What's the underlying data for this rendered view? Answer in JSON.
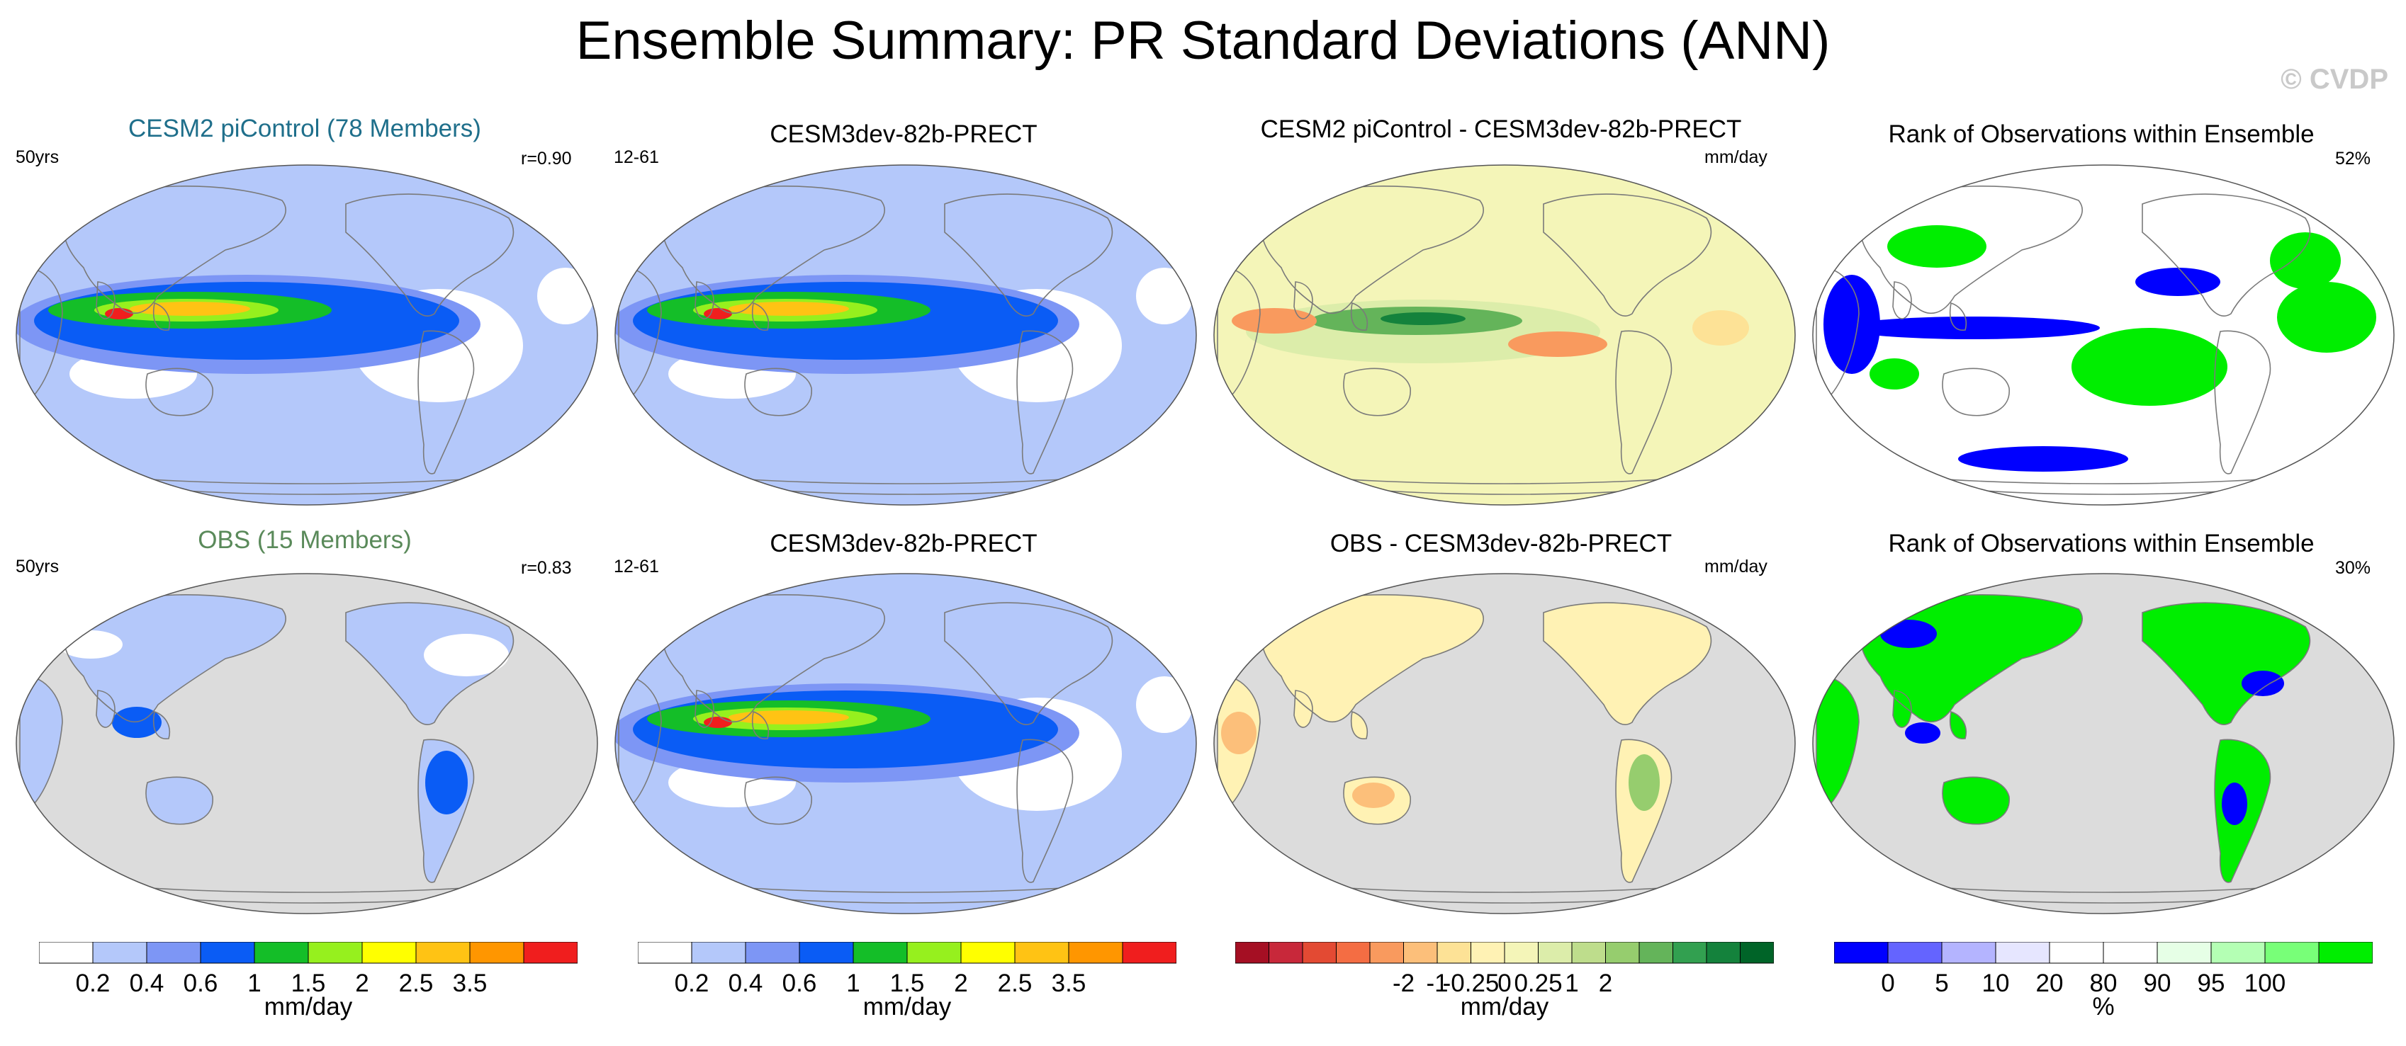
{
  "figure": {
    "title": "Ensemble Summary: PR Standard Deviations (ANN)",
    "watermark": "© CVDP"
  },
  "colors": {
    "land_gray": "#dcdcdc",
    "ocean_white": "#ffffff",
    "coast": "#7a7a7a",
    "model_title": "#1f6f8b",
    "obs_title": "#5a8a5a"
  },
  "panels": [
    {
      "id": "p1",
      "title": "CESM2 piControl (78 Members)",
      "title_color": "#1f6f8b",
      "left_label": "50yrs",
      "right_label": "r=0.90",
      "field": "std"
    },
    {
      "id": "p2",
      "title": "CESM3dev-82b-PRECT",
      "title_color": "#000000",
      "left_label": "12-61",
      "right_label": "",
      "field": "std"
    },
    {
      "id": "p3",
      "title": "CESM2 piControl - CESM3dev-82b-PRECT",
      "title_color": "#000000",
      "left_label": "",
      "right_label": "mm/day",
      "field": "diff"
    },
    {
      "id": "p4",
      "title": "Rank of Observations within Ensemble",
      "title_color": "#000000",
      "left_label": "",
      "right_label": "52%",
      "field": "rank"
    },
    {
      "id": "p5",
      "title": "OBS (15 Members)",
      "title_color": "#5a8a5a",
      "left_label": "50yrs",
      "right_label": "r=0.83",
      "field": "std-land"
    },
    {
      "id": "p6",
      "title": "CESM3dev-82b-PRECT",
      "title_color": "#000000",
      "left_label": "12-61",
      "right_label": "",
      "field": "std"
    },
    {
      "id": "p7",
      "title": "OBS - CESM3dev-82b-PRECT",
      "title_color": "#000000",
      "left_label": "",
      "right_label": "mm/day",
      "field": "diff-land"
    },
    {
      "id": "p8",
      "title": "Rank of Observations within Ensemble",
      "title_color": "#000000",
      "left_label": "",
      "right_label": "30%",
      "field": "rank-land"
    }
  ],
  "colorbars": [
    {
      "id": "cb1",
      "unit": "mm/day",
      "colors": [
        "#ffffff",
        "#b4c8fa",
        "#7d96f5",
        "#0a5cf5",
        "#14be28",
        "#96f01e",
        "#ffff00",
        "#ffc314",
        "#ff9600",
        "#f01e1e"
      ],
      "ticks": [
        "0.2",
        "0.4",
        "0.6",
        "1",
        "1.5",
        "2",
        "2.5",
        "3.5"
      ]
    },
    {
      "id": "cb2",
      "unit": "mm/day",
      "colors": [
        "#ffffff",
        "#b4c8fa",
        "#7d96f5",
        "#0a5cf5",
        "#14be28",
        "#96f01e",
        "#ffff00",
        "#ffc314",
        "#ff9600",
        "#f01e1e"
      ],
      "ticks": [
        "0.2",
        "0.4",
        "0.6",
        "1",
        "1.5",
        "2",
        "2.5",
        "3.5"
      ]
    },
    {
      "id": "cb3",
      "unit": "mm/day",
      "colors": [
        "#a50f23",
        "#c8283a",
        "#e34a33",
        "#f46d43",
        "#f99a5e",
        "#fcbf7a",
        "#fde296",
        "#fff2b4",
        "#f4f5b8",
        "#dcedaa",
        "#bedd8c",
        "#96cd6e",
        "#64b45a",
        "#32a050",
        "#14823c",
        "#006428"
      ],
      "ticks": [
        "-2",
        "-1",
        "-0.25",
        "0",
        "0.25",
        "1",
        "2"
      ]
    },
    {
      "id": "cb4",
      "unit": "%",
      "colors": [
        "#0000ff",
        "#6464ff",
        "#b4b4ff",
        "#e6e6ff",
        "#ffffff",
        "#ffffff",
        "#e6ffe6",
        "#b4ffb4",
        "#78ff78",
        "#00ee00"
      ],
      "ticks": [
        "0",
        "5",
        "10",
        "20",
        "80",
        "90",
        "95",
        "100"
      ]
    }
  ]
}
